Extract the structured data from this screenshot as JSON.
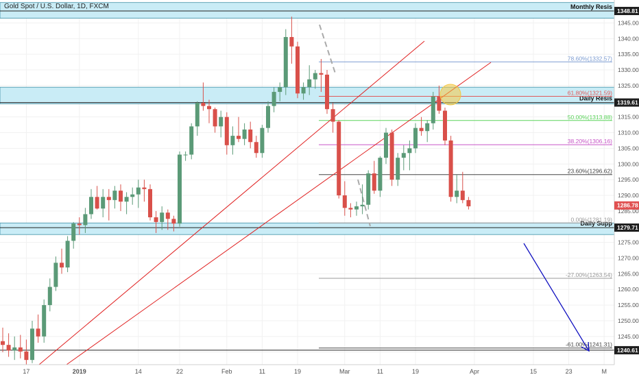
{
  "title": "Gold Spot / U.S. Dollar, 1D, FXCM",
  "chart_data": {
    "type": "candlestick",
    "title": "Gold Spot / U.S. Dollar, 1D, FXCM",
    "ylim": [
      1236,
      1351
    ],
    "y_ticks": [
      1240,
      1245,
      1250,
      1255,
      1260,
      1265,
      1270,
      1275,
      1280,
      1285,
      1290,
      1295,
      1300,
      1305,
      1310,
      1315,
      1320,
      1325,
      1330,
      1335,
      1340,
      1345
    ],
    "x_ticks": [
      {
        "label": "17",
        "i": 4
      },
      {
        "label": "2019",
        "i": 13
      },
      {
        "label": "14",
        "i": 23
      },
      {
        "label": "22",
        "i": 30
      },
      {
        "label": "Feb",
        "i": 38
      },
      {
        "label": "11",
        "i": 44
      },
      {
        "label": "19",
        "i": 50
      },
      {
        "label": "Mar",
        "i": 58
      },
      {
        "label": "11",
        "i": 64
      },
      {
        "label": "19",
        "i": 70
      },
      {
        "label": "Apr",
        "i": 80
      },
      {
        "label": "15",
        "i": 90
      },
      {
        "label": "23",
        "i": 96
      },
      {
        "label": "M",
        "i": 102
      }
    ],
    "candles": [
      [
        1243.5,
        1247.8,
        1240,
        1242.3
      ],
      [
        1242.3,
        1246,
        1238.5,
        1240.5
      ],
      [
        1240.5,
        1245,
        1237.5,
        1241.5
      ],
      [
        1241.5,
        1245.5,
        1238,
        1240.2
      ],
      [
        1240.2,
        1244,
        1236,
        1237.5
      ],
      [
        1237.5,
        1250,
        1236.5,
        1247.5
      ],
      [
        1247.5,
        1252,
        1243,
        1245
      ],
      [
        1245,
        1256.8,
        1243,
        1255
      ],
      [
        1255,
        1263.5,
        1253,
        1260.8
      ],
      [
        1260.8,
        1270.5,
        1259.5,
        1268.5
      ],
      [
        1268.5,
        1273,
        1265,
        1267
      ],
      [
        1267,
        1277,
        1265.5,
        1275.5
      ],
      [
        1275.5,
        1281.5,
        1273,
        1281
      ],
      [
        1281,
        1283,
        1277.5,
        1280.5
      ],
      [
        1280.5,
        1286,
        1278,
        1284
      ],
      [
        1284,
        1292,
        1282.5,
        1289.5
      ],
      [
        1289.5,
        1293,
        1285.5,
        1285.8
      ],
      [
        1285.8,
        1292,
        1283,
        1289.5
      ],
      [
        1289.5,
        1292,
        1282,
        1288.5
      ],
      [
        1288.5,
        1293,
        1285.8,
        1291.5
      ],
      [
        1291.5,
        1293.5,
        1285,
        1288
      ],
      [
        1288,
        1291,
        1284,
        1289.5
      ],
      [
        1289.5,
        1292.5,
        1287,
        1290.3
      ],
      [
        1290.3,
        1295,
        1286,
        1292.5
      ],
      [
        1292.5,
        1295,
        1288,
        1292
      ],
      [
        1292,
        1293.5,
        1282,
        1283
      ],
      [
        1283,
        1285,
        1278,
        1281.5
      ],
      [
        1281.5,
        1286.5,
        1279,
        1284.5
      ],
      [
        1284.5,
        1285.5,
        1279,
        1282.5
      ],
      [
        1282.5,
        1283.5,
        1278.5,
        1281
      ],
      [
        1281,
        1304,
        1280,
        1303
      ],
      [
        1303,
        1304,
        1301,
        1303
      ],
      [
        1303,
        1313,
        1301.5,
        1312
      ],
      [
        1312,
        1320,
        1309,
        1319.5
      ],
      [
        1319.5,
        1326,
        1317,
        1318.5
      ],
      [
        1318.5,
        1320.5,
        1313,
        1317.5
      ],
      [
        1317.5,
        1318,
        1310,
        1312
      ],
      [
        1312,
        1317,
        1308.5,
        1315
      ],
      [
        1315,
        1316.5,
        1303,
        1306
      ],
      [
        1306,
        1312,
        1303,
        1309
      ],
      [
        1309,
        1315,
        1307,
        1308
      ],
      [
        1308,
        1313,
        1306,
        1311
      ],
      [
        1311,
        1313.5,
        1305,
        1307
      ],
      [
        1307,
        1309,
        1302,
        1303.5
      ],
      [
        1303.5,
        1312.5,
        1302,
        1311.5
      ],
      [
        1311.5,
        1320,
        1310,
        1318.5
      ],
      [
        1318.5,
        1324.5,
        1316.5,
        1323
      ],
      [
        1323,
        1326,
        1320,
        1324.5
      ],
      [
        1324.5,
        1343,
        1322,
        1340.5
      ],
      [
        1340.5,
        1347,
        1332,
        1337.5
      ],
      [
        1337.5,
        1339,
        1321,
        1322.5
      ],
      [
        1322.5,
        1326,
        1320.5,
        1324.5
      ],
      [
        1324.5,
        1331.5,
        1322,
        1327
      ],
      [
        1327,
        1330,
        1324,
        1329
      ],
      [
        1329,
        1333.5,
        1323,
        1328.5
      ],
      [
        1328.5,
        1330,
        1316,
        1317.5
      ],
      [
        1317.5,
        1319.5,
        1310,
        1313.5
      ],
      [
        1313.5,
        1314,
        1289,
        1290
      ],
      [
        1290,
        1294.5,
        1283.5,
        1286
      ],
      [
        1286,
        1287.5,
        1283,
        1285.5
      ],
      [
        1285.5,
        1288,
        1283.5,
        1286.5
      ],
      [
        1286.5,
        1293.5,
        1284,
        1287
      ],
      [
        1287,
        1298,
        1285.5,
        1297
      ],
      [
        1297,
        1301,
        1290.5,
        1291.5
      ],
      [
        1291.5,
        1302.5,
        1289.5,
        1302
      ],
      [
        1302,
        1311.5,
        1300,
        1310
      ],
      [
        1310,
        1311,
        1293,
        1295
      ],
      [
        1295,
        1303.5,
        1293,
        1302
      ],
      [
        1302,
        1306,
        1298,
        1303.5
      ],
      [
        1303.5,
        1307.5,
        1298,
        1305
      ],
      [
        1305,
        1313,
        1303.5,
        1311.5
      ],
      [
        1311.5,
        1315,
        1309,
        1310.5
      ],
      [
        1310.5,
        1314,
        1307,
        1313
      ],
      [
        1313,
        1323,
        1311,
        1321.5
      ],
      [
        1321.5,
        1325,
        1316,
        1317
      ],
      [
        1317,
        1318,
        1306,
        1307.5
      ],
      [
        1307.5,
        1309,
        1288,
        1289.5
      ],
      [
        1289.5,
        1296.5,
        1287.5,
        1291.5
      ],
      [
        1291.5,
        1297.5,
        1287.5,
        1288.5
      ],
      [
        1288.5,
        1289.5,
        1285.5,
        1286.5
      ]
    ],
    "horizontal_levels": [
      {
        "label": "Monthly Resis",
        "price": "1348.81",
        "value": 1348.81
      },
      {
        "label": "Daily Resis",
        "price": "1319.61",
        "value": 1319.61
      },
      {
        "label": "Daily Supp",
        "price": "1279.71",
        "value": 1279.71
      },
      {
        "label": "",
        "price": "1240.61",
        "value": 1240.61
      }
    ],
    "current_price": {
      "price": "1286.78",
      "value": 1286.78,
      "color": "#e05050"
    },
    "zones": [
      {
        "from": 1346.5,
        "to": 1351.5
      },
      {
        "from": 1319.2,
        "to": 1324.5
      },
      {
        "from": 1277.5,
        "to": 1281.2
      }
    ],
    "fibonacci": [
      {
        "label": "78.60%(1332.57)",
        "value": 1332.57,
        "color": "#7b9bd1"
      },
      {
        "label": "61.80%(1321.59)",
        "value": 1321.59,
        "color": "#e05a5a"
      },
      {
        "label": "50.00%(1313.88)",
        "value": 1313.88,
        "color": "#5ad35a"
      },
      {
        "label": "38.20%(1306.16)",
        "value": 1306.16,
        "color": "#c653c6"
      },
      {
        "label": "23.60%(1296.62)",
        "value": 1296.62,
        "color": "#444444"
      },
      {
        "label": "0.00%(1281.19)",
        "value": 1281.19,
        "color": "#999999"
      },
      {
        "label": "-27.00%(1263.54)",
        "value": 1263.54,
        "color": "#999999"
      },
      {
        "label": "-61.00%(1241.31)",
        "value": 1241.31,
        "color": "#444444"
      }
    ],
    "colors": {
      "up": "#5b9a77",
      "down": "#d9504a",
      "zone": "#c9ecf6",
      "zone_border": "#3e8fa6",
      "trend": "#e02020",
      "arrow": "#1010c0",
      "highlight": "#f5c842",
      "grid": "#f1f1f1"
    },
    "grid": true
  }
}
